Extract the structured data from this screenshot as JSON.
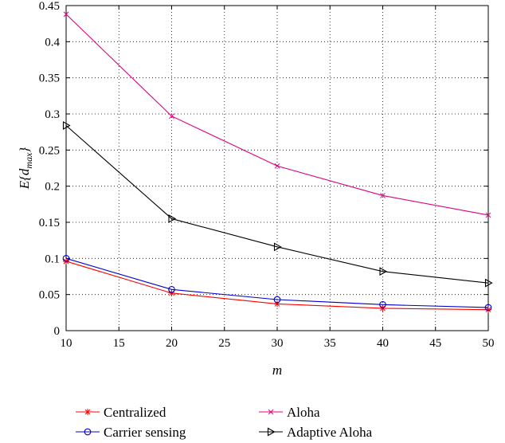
{
  "chart_data": {
    "type": "line",
    "xlabel": "m",
    "ylabel_main": "E{d",
    "ylabel_sub": "max",
    "ylabel_end": "}",
    "xlim": [
      10,
      50
    ],
    "ylim": [
      0,
      0.45
    ],
    "x_ticks": [
      "10",
      "15",
      "20",
      "25",
      "30",
      "35",
      "40",
      "45",
      "50"
    ],
    "y_ticks": [
      "0",
      "0.05",
      "0.1",
      "0.15",
      "0.2",
      "0.25",
      "0.3",
      "0.35",
      "0.4",
      "0.45"
    ],
    "grid": true,
    "legend_position": "below",
    "x": [
      10,
      20,
      30,
      40,
      50
    ],
    "series": [
      {
        "name": "Centralized",
        "color": "#ff0000",
        "marker": "asterisk",
        "values": [
          0.096,
          0.052,
          0.037,
          0.031,
          0.029
        ]
      },
      {
        "name": "Aloha",
        "color": "#e0007f",
        "marker": "x",
        "values": [
          0.438,
          0.297,
          0.228,
          0.187,
          0.16
        ]
      },
      {
        "name": "Carrier sensing",
        "color": "#0000cc",
        "marker": "circle",
        "values": [
          0.1,
          0.057,
          0.043,
          0.036,
          0.032
        ]
      },
      {
        "name": "Adaptive Aloha",
        "color": "#000000",
        "marker": "triangle-right",
        "values": [
          0.284,
          0.155,
          0.116,
          0.082,
          0.066
        ]
      }
    ]
  }
}
